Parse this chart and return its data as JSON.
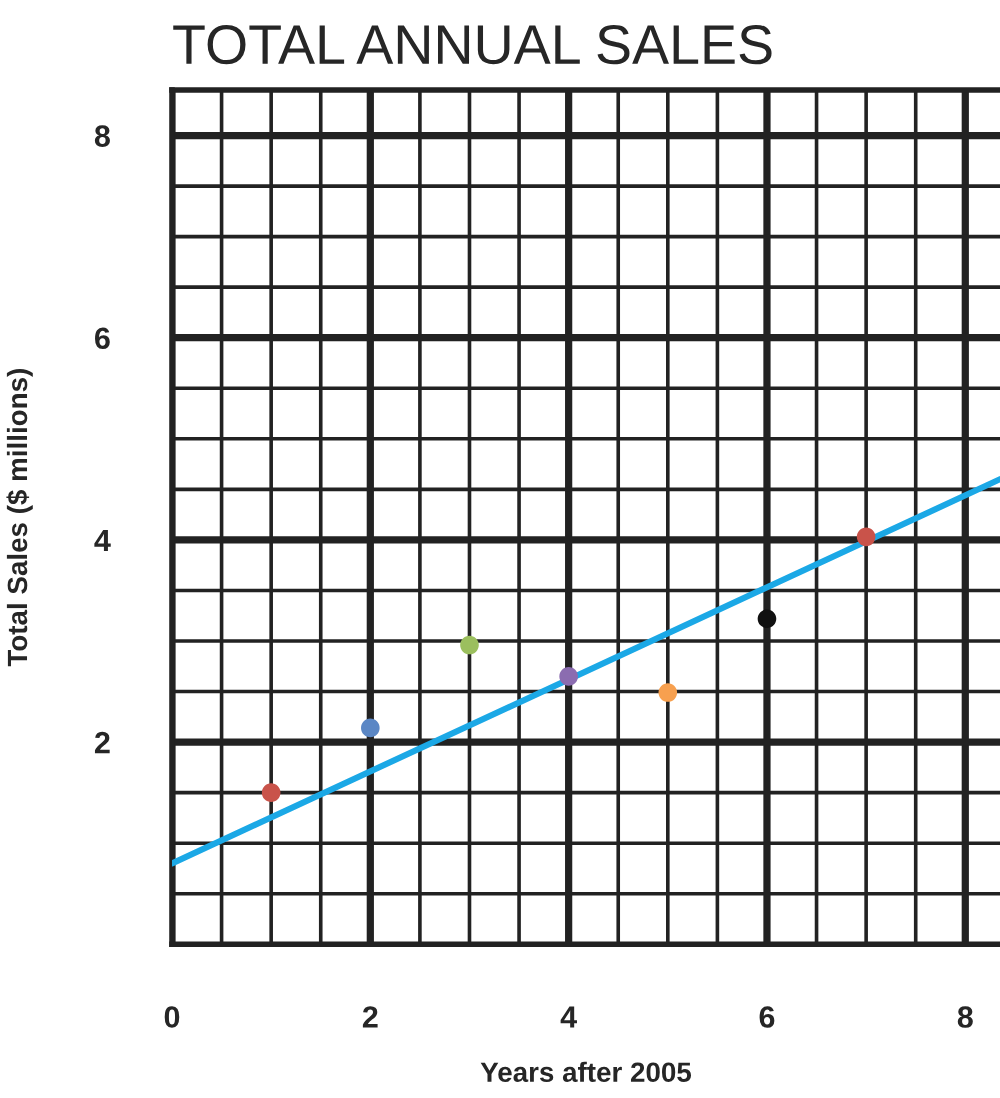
{
  "chart_data": {
    "type": "scatter",
    "title": "TOTAL ANNUAL SALES",
    "xlabel": "Years after 2005",
    "ylabel": "Total Sales ($ millions)",
    "xlim": [
      0,
      8.35
    ],
    "ylim": [
      0,
      8.45
    ],
    "xticks": [
      0,
      {
        "value": 0.5,
        "label": null
      },
      {
        "value": 1,
        "label": null
      },
      {
        "value": 1.5,
        "label": null
      },
      2,
      {
        "value": 2.5,
        "label": null
      },
      {
        "value": 3,
        "label": null
      },
      {
        "value": 3.5,
        "label": null
      },
      4,
      {
        "value": 4.5,
        "label": null
      },
      {
        "value": 5,
        "label": null
      },
      {
        "value": 5.5,
        "label": null
      },
      6,
      {
        "value": 6.5,
        "label": null
      },
      {
        "value": 7,
        "label": null
      },
      {
        "value": 7.5,
        "label": null
      },
      8
    ],
    "yticks": [
      {
        "value": 0.5,
        "label": null
      },
      {
        "value": 1,
        "label": null
      },
      {
        "value": 1.5,
        "label": null
      },
      2,
      {
        "value": 2.5,
        "label": null
      },
      {
        "value": 3,
        "label": null
      },
      {
        "value": 3.5,
        "label": null
      },
      4,
      {
        "value": 4.5,
        "label": null
      },
      {
        "value": 5,
        "label": null
      },
      {
        "value": 5.5,
        "label": null
      },
      6,
      {
        "value": 6.5,
        "label": null
      },
      {
        "value": 7,
        "label": null
      },
      {
        "value": 7.5,
        "label": null
      },
      8
    ],
    "grid": true,
    "series": [
      {
        "marker": "circle",
        "x": [
          1,
          2,
          3,
          4,
          5,
          6,
          7
        ],
        "values": [
          1.5,
          2.14,
          2.96,
          2.65,
          2.49,
          3.22,
          4.03
        ],
        "colors": [
          "#c9534a",
          "#5b87c5",
          "#9bbf5e",
          "#8b6cb0",
          "#f7a04f",
          "#111111",
          "#c9534a"
        ]
      },
      {
        "type": "line",
        "x": [
          0,
          8.35
        ],
        "values": [
          0.8,
          4.6
        ],
        "color": "#1ba8e6"
      }
    ]
  }
}
